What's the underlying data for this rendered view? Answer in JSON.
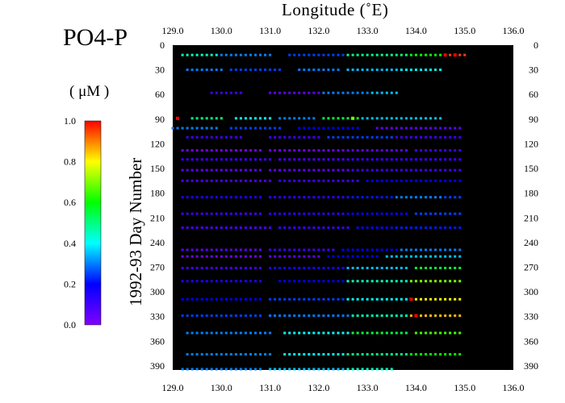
{
  "chart_data": {
    "type": "scatter",
    "title": "PO4-P",
    "unit_label": "( μM )",
    "xlabel": "Longitude (˚E)",
    "ylabel": "1992-93 Day Number",
    "xlim": [
      129.0,
      136.0
    ],
    "ylim": [
      0,
      395
    ],
    "x_ticks": [
      "129.0",
      "130.0",
      "131.0",
      "132.0",
      "133.0",
      "134.0",
      "135.0",
      "136.0"
    ],
    "y_ticks": [
      "0",
      "30",
      "60",
      "90",
      "120",
      "150",
      "180",
      "210",
      "240",
      "270",
      "300",
      "330",
      "360",
      "390"
    ],
    "colorbar": {
      "min": 0.0,
      "max": 1.0,
      "ticks": [
        "0.0",
        "0.2",
        "0.4",
        "0.6",
        "0.8",
        "1.0"
      ],
      "colormap": [
        "#8000ff",
        "#0000ff",
        "#00ffff",
        "#00ff00",
        "#ffff00",
        "#ff0000"
      ]
    },
    "background": "#000000",
    "rows": [
      {
        "day": 12,
        "segments": [
          [
            129.2,
            129.9,
            0.45
          ],
          [
            130.0,
            131.0,
            0.3
          ],
          [
            131.4,
            132.5,
            0.25
          ],
          [
            132.6,
            133.8,
            0.5
          ],
          [
            133.9,
            134.5,
            0.6
          ],
          [
            134.6,
            135.0,
            0.95
          ]
        ]
      },
      {
        "day": 30,
        "segments": [
          [
            129.3,
            130.0,
            0.3
          ],
          [
            130.2,
            131.2,
            0.25
          ],
          [
            131.6,
            132.4,
            0.3
          ],
          [
            132.6,
            133.6,
            0.35
          ],
          [
            133.7,
            134.5,
            0.4
          ]
        ]
      },
      {
        "day": 58,
        "segments": [
          [
            129.8,
            130.4,
            0.1
          ],
          [
            131.0,
            132.0,
            0.05
          ],
          [
            132.1,
            133.0,
            0.3
          ],
          [
            133.1,
            133.6,
            0.35
          ]
        ]
      },
      {
        "day": 89,
        "segments": [
          [
            129.4,
            130.0,
            0.5
          ],
          [
            130.3,
            131.0,
            0.4
          ],
          [
            131.2,
            131.9,
            0.3
          ],
          [
            132.1,
            132.8,
            0.55
          ],
          [
            132.9,
            134.5,
            0.35
          ]
        ]
      },
      {
        "day": 101,
        "segments": [
          [
            129.0,
            129.9,
            0.3
          ],
          [
            130.2,
            131.2,
            0.25
          ],
          [
            131.6,
            132.8,
            0.2
          ],
          [
            133.2,
            134.9,
            0.05
          ]
        ]
      },
      {
        "day": 112,
        "segments": [
          [
            129.3,
            130.4,
            0.1
          ],
          [
            131.0,
            132.0,
            0.1
          ],
          [
            132.2,
            133.5,
            0.25
          ],
          [
            133.6,
            134.9,
            0.1
          ]
        ]
      },
      {
        "day": 128,
        "segments": [
          [
            129.2,
            130.8,
            0.02
          ],
          [
            131.0,
            132.5,
            0.03
          ],
          [
            132.6,
            133.8,
            0.05
          ],
          [
            134.0,
            134.9,
            0.1
          ]
        ]
      },
      {
        "day": 139,
        "segments": [
          [
            129.2,
            131.0,
            0.1
          ],
          [
            131.2,
            132.5,
            0.08
          ],
          [
            132.6,
            134.9,
            0.1
          ]
        ]
      },
      {
        "day": 152,
        "segments": [
          [
            129.2,
            130.8,
            0.05
          ],
          [
            131.0,
            132.6,
            0.05
          ],
          [
            132.7,
            134.9,
            0.1
          ]
        ]
      },
      {
        "day": 165,
        "segments": [
          [
            129.2,
            131.0,
            0.08
          ],
          [
            131.2,
            132.8,
            0.1
          ],
          [
            133.0,
            134.9,
            0.2
          ]
        ]
      },
      {
        "day": 185,
        "segments": [
          [
            129.2,
            130.8,
            0.15
          ],
          [
            131.0,
            132.5,
            0.12
          ],
          [
            132.6,
            133.5,
            0.22
          ],
          [
            133.6,
            134.5,
            0.3
          ],
          [
            134.6,
            134.9,
            0.25
          ]
        ]
      },
      {
        "day": 205,
        "segments": [
          [
            129.2,
            130.8,
            0.1
          ],
          [
            131.0,
            132.5,
            0.12
          ],
          [
            132.6,
            133.8,
            0.18
          ],
          [
            134.0,
            134.9,
            0.25
          ]
        ]
      },
      {
        "day": 222,
        "segments": [
          [
            129.2,
            131.0,
            0.08
          ],
          [
            131.2,
            132.6,
            0.1
          ],
          [
            132.8,
            133.5,
            0.18
          ],
          [
            133.6,
            134.9,
            0.22
          ]
        ]
      },
      {
        "day": 249,
        "segments": [
          [
            129.2,
            130.8,
            0.05
          ],
          [
            131.0,
            132.3,
            0.1
          ],
          [
            132.5,
            133.6,
            0.2
          ],
          [
            133.7,
            134.9,
            0.3
          ]
        ]
      },
      {
        "day": 257,
        "segments": [
          [
            129.2,
            130.8,
            0.02
          ],
          [
            131.0,
            132.0,
            0.05
          ],
          [
            132.2,
            133.2,
            0.2
          ],
          [
            133.4,
            134.9,
            0.35
          ]
        ]
      },
      {
        "day": 271,
        "segments": [
          [
            129.2,
            130.8,
            0.1
          ],
          [
            131.0,
            132.5,
            0.15
          ],
          [
            132.6,
            133.8,
            0.35
          ],
          [
            134.0,
            134.9,
            0.55
          ]
        ]
      },
      {
        "day": 287,
        "segments": [
          [
            129.2,
            130.8,
            0.15
          ],
          [
            131.2,
            132.5,
            0.2
          ],
          [
            132.6,
            133.8,
            0.45
          ],
          [
            133.9,
            134.9,
            0.7
          ]
        ]
      },
      {
        "day": 309,
        "segments": [
          [
            129.2,
            130.8,
            0.2
          ],
          [
            131.0,
            132.5,
            0.25
          ],
          [
            132.6,
            133.8,
            0.4
          ],
          [
            133.9,
            134.9,
            0.8
          ]
        ]
      },
      {
        "day": 329,
        "segments": [
          [
            129.2,
            130.8,
            0.25
          ],
          [
            131.0,
            132.6,
            0.3
          ],
          [
            132.7,
            133.8,
            0.45
          ],
          [
            133.9,
            134.9,
            0.85
          ]
        ]
      },
      {
        "day": 350,
        "segments": [
          [
            129.3,
            131.0,
            0.3
          ],
          [
            131.3,
            132.6,
            0.4
          ],
          [
            132.7,
            133.8,
            0.55
          ],
          [
            134.0,
            134.9,
            0.65
          ]
        ]
      },
      {
        "day": 376,
        "segments": [
          [
            129.3,
            131.0,
            0.3
          ],
          [
            131.3,
            132.5,
            0.4
          ],
          [
            132.6,
            133.8,
            0.5
          ],
          [
            133.9,
            134.9,
            0.6
          ]
        ]
      },
      {
        "day": 394,
        "segments": [
          [
            129.2,
            130.8,
            0.3
          ],
          [
            131.0,
            132.5,
            0.35
          ],
          [
            132.6,
            133.5,
            0.45
          ]
        ]
      }
    ],
    "outliers": [
      {
        "lon": 129.1,
        "day": 89,
        "value": 1.0
      },
      {
        "lon": 132.7,
        "day": 89,
        "value": 0.7
      },
      {
        "lon": 133.9,
        "day": 309,
        "value": 1.0
      },
      {
        "lon": 134.0,
        "day": 329,
        "value": 1.0
      },
      {
        "lon": 134.6,
        "day": 12,
        "value": 1.0
      },
      {
        "lon": 134.8,
        "day": 12,
        "value": 1.0
      }
    ]
  }
}
